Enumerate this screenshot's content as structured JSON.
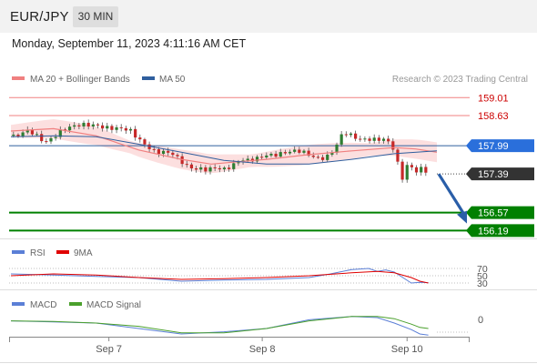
{
  "header": {
    "symbol": "EUR/JPY",
    "timeframe": "30 MIN",
    "datetime": "Monday, September 11, 2023 4:11:16 AM CET"
  },
  "colors": {
    "ma20": "#f08080",
    "bollinger_fill": "#fbd9d9",
    "ma50": "#2f5f9e",
    "resistance": "#f08080",
    "support": "#008000",
    "candle_up": "#2e7d32",
    "candle_down": "#c62828",
    "current_price_bg": "#333333",
    "pivot_bg": "#2a6fdb",
    "arrow": "#2a5ea8",
    "rsi": "#5b7fd6",
    "rsi_ma": "#e00000",
    "macd": "#5b7fd6",
    "macd_signal": "#4aa02c"
  },
  "chart_data": [
    {
      "type": "line",
      "title": "",
      "legend": [
        {
          "name": "MA 20 + Bollinger Bands",
          "color": "#f08080"
        },
        {
          "name": "MA 50",
          "color": "#2f5f9e"
        }
      ],
      "watermark": "Research © 2023 Trading Central",
      "x_ticks": [
        "Sep 7",
        "Sep 8",
        "Sep 10"
      ],
      "y_range": [
        156.1,
        159.15
      ],
      "levels": [
        {
          "price": "159.01",
          "kind": "resistance"
        },
        {
          "price": "158.63",
          "kind": "resistance"
        },
        {
          "price": "157.99",
          "kind": "pivot"
        },
        {
          "price": "157.39",
          "kind": "current"
        },
        {
          "price": "156.57",
          "kind": "support"
        },
        {
          "price": "156.19",
          "kind": "support"
        }
      ],
      "series": [
        {
          "name": "MA 20 + Bollinger Bands",
          "x": [
            0,
            10,
            20,
            30,
            40,
            47,
            60,
            70,
            80,
            90,
            95,
            100
          ],
          "values": [
            158.3,
            158.35,
            158.2,
            157.9,
            157.7,
            157.6,
            157.7,
            157.8,
            157.88,
            157.95,
            157.92,
            157.85
          ]
        },
        {
          "name": "MA 50",
          "x": [
            0,
            10,
            20,
            30,
            40,
            50,
            60,
            70,
            80,
            90,
            100
          ],
          "values": [
            158.18,
            158.2,
            158.18,
            158.02,
            157.85,
            157.68,
            157.6,
            157.6,
            157.7,
            157.82,
            157.88
          ]
        }
      ],
      "price_path": {
        "x": [
          0,
          4,
          8,
          12,
          16,
          20,
          24,
          28,
          32,
          34,
          38,
          42,
          46,
          48,
          50,
          52,
          54,
          56,
          58,
          60,
          64,
          68,
          70,
          72,
          74,
          76,
          78,
          80,
          82,
          84,
          86,
          88,
          90,
          91,
          92,
          93,
          94,
          95,
          96,
          98
        ],
        "values": [
          158.2,
          158.3,
          158.05,
          158.35,
          158.4,
          158.45,
          158.35,
          158.3,
          158.0,
          157.85,
          157.8,
          157.55,
          157.45,
          157.5,
          157.5,
          157.6,
          157.7,
          157.65,
          157.7,
          157.8,
          157.85,
          157.85,
          157.8,
          157.75,
          157.75,
          157.9,
          158.25,
          158.2,
          158.15,
          158.15,
          158.1,
          158.1,
          157.9,
          157.55,
          157.3,
          157.6,
          157.55,
          157.45,
          157.5,
          157.39
        ]
      }
    },
    {
      "type": "line",
      "title": "",
      "legend": [
        {
          "name": "RSI",
          "color": "#5b7fd6"
        },
        {
          "name": "9MA",
          "color": "#e00000"
        }
      ],
      "y_ticks": [
        "70",
        "50",
        "30"
      ],
      "series": [
        {
          "name": "RSI",
          "x": [
            0,
            10,
            20,
            30,
            40,
            50,
            60,
            70,
            75,
            80,
            84,
            86,
            88,
            90,
            92,
            94,
            96,
            98
          ],
          "values": [
            55,
            52,
            48,
            45,
            35,
            38,
            40,
            45,
            55,
            67,
            70,
            62,
            66,
            60,
            45,
            30,
            32,
            31
          ]
        },
        {
          "name": "9MA",
          "x": [
            0,
            10,
            20,
            30,
            40,
            50,
            60,
            70,
            80,
            86,
            90,
            94,
            96,
            98
          ],
          "values": [
            50,
            55,
            52,
            45,
            40,
            42,
            45,
            50,
            58,
            62,
            58,
            45,
            35,
            30
          ]
        }
      ]
    },
    {
      "type": "line",
      "title": "",
      "legend": [
        {
          "name": "MACD",
          "color": "#5b7fd6"
        },
        {
          "name": "MACD Signal",
          "color": "#4aa02c"
        }
      ],
      "y_ticks": [
        "0"
      ],
      "series": [
        {
          "name": "MACD",
          "x": [
            0,
            10,
            20,
            30,
            40,
            50,
            60,
            70,
            80,
            86,
            90,
            94,
            96,
            98
          ],
          "values": [
            0.02,
            0.01,
            0.0,
            -0.05,
            -0.1,
            -0.08,
            -0.05,
            0.03,
            0.06,
            0.05,
            0.0,
            -0.06,
            -0.1,
            -0.11
          ]
        },
        {
          "name": "MACD Signal",
          "x": [
            0,
            10,
            20,
            30,
            40,
            50,
            60,
            70,
            80,
            86,
            90,
            94,
            96,
            98
          ],
          "values": [
            0.02,
            0.015,
            0.0,
            -0.03,
            -0.09,
            -0.09,
            -0.05,
            0.02,
            0.06,
            0.06,
            0.04,
            -0.01,
            -0.04,
            -0.05
          ]
        }
      ]
    }
  ]
}
